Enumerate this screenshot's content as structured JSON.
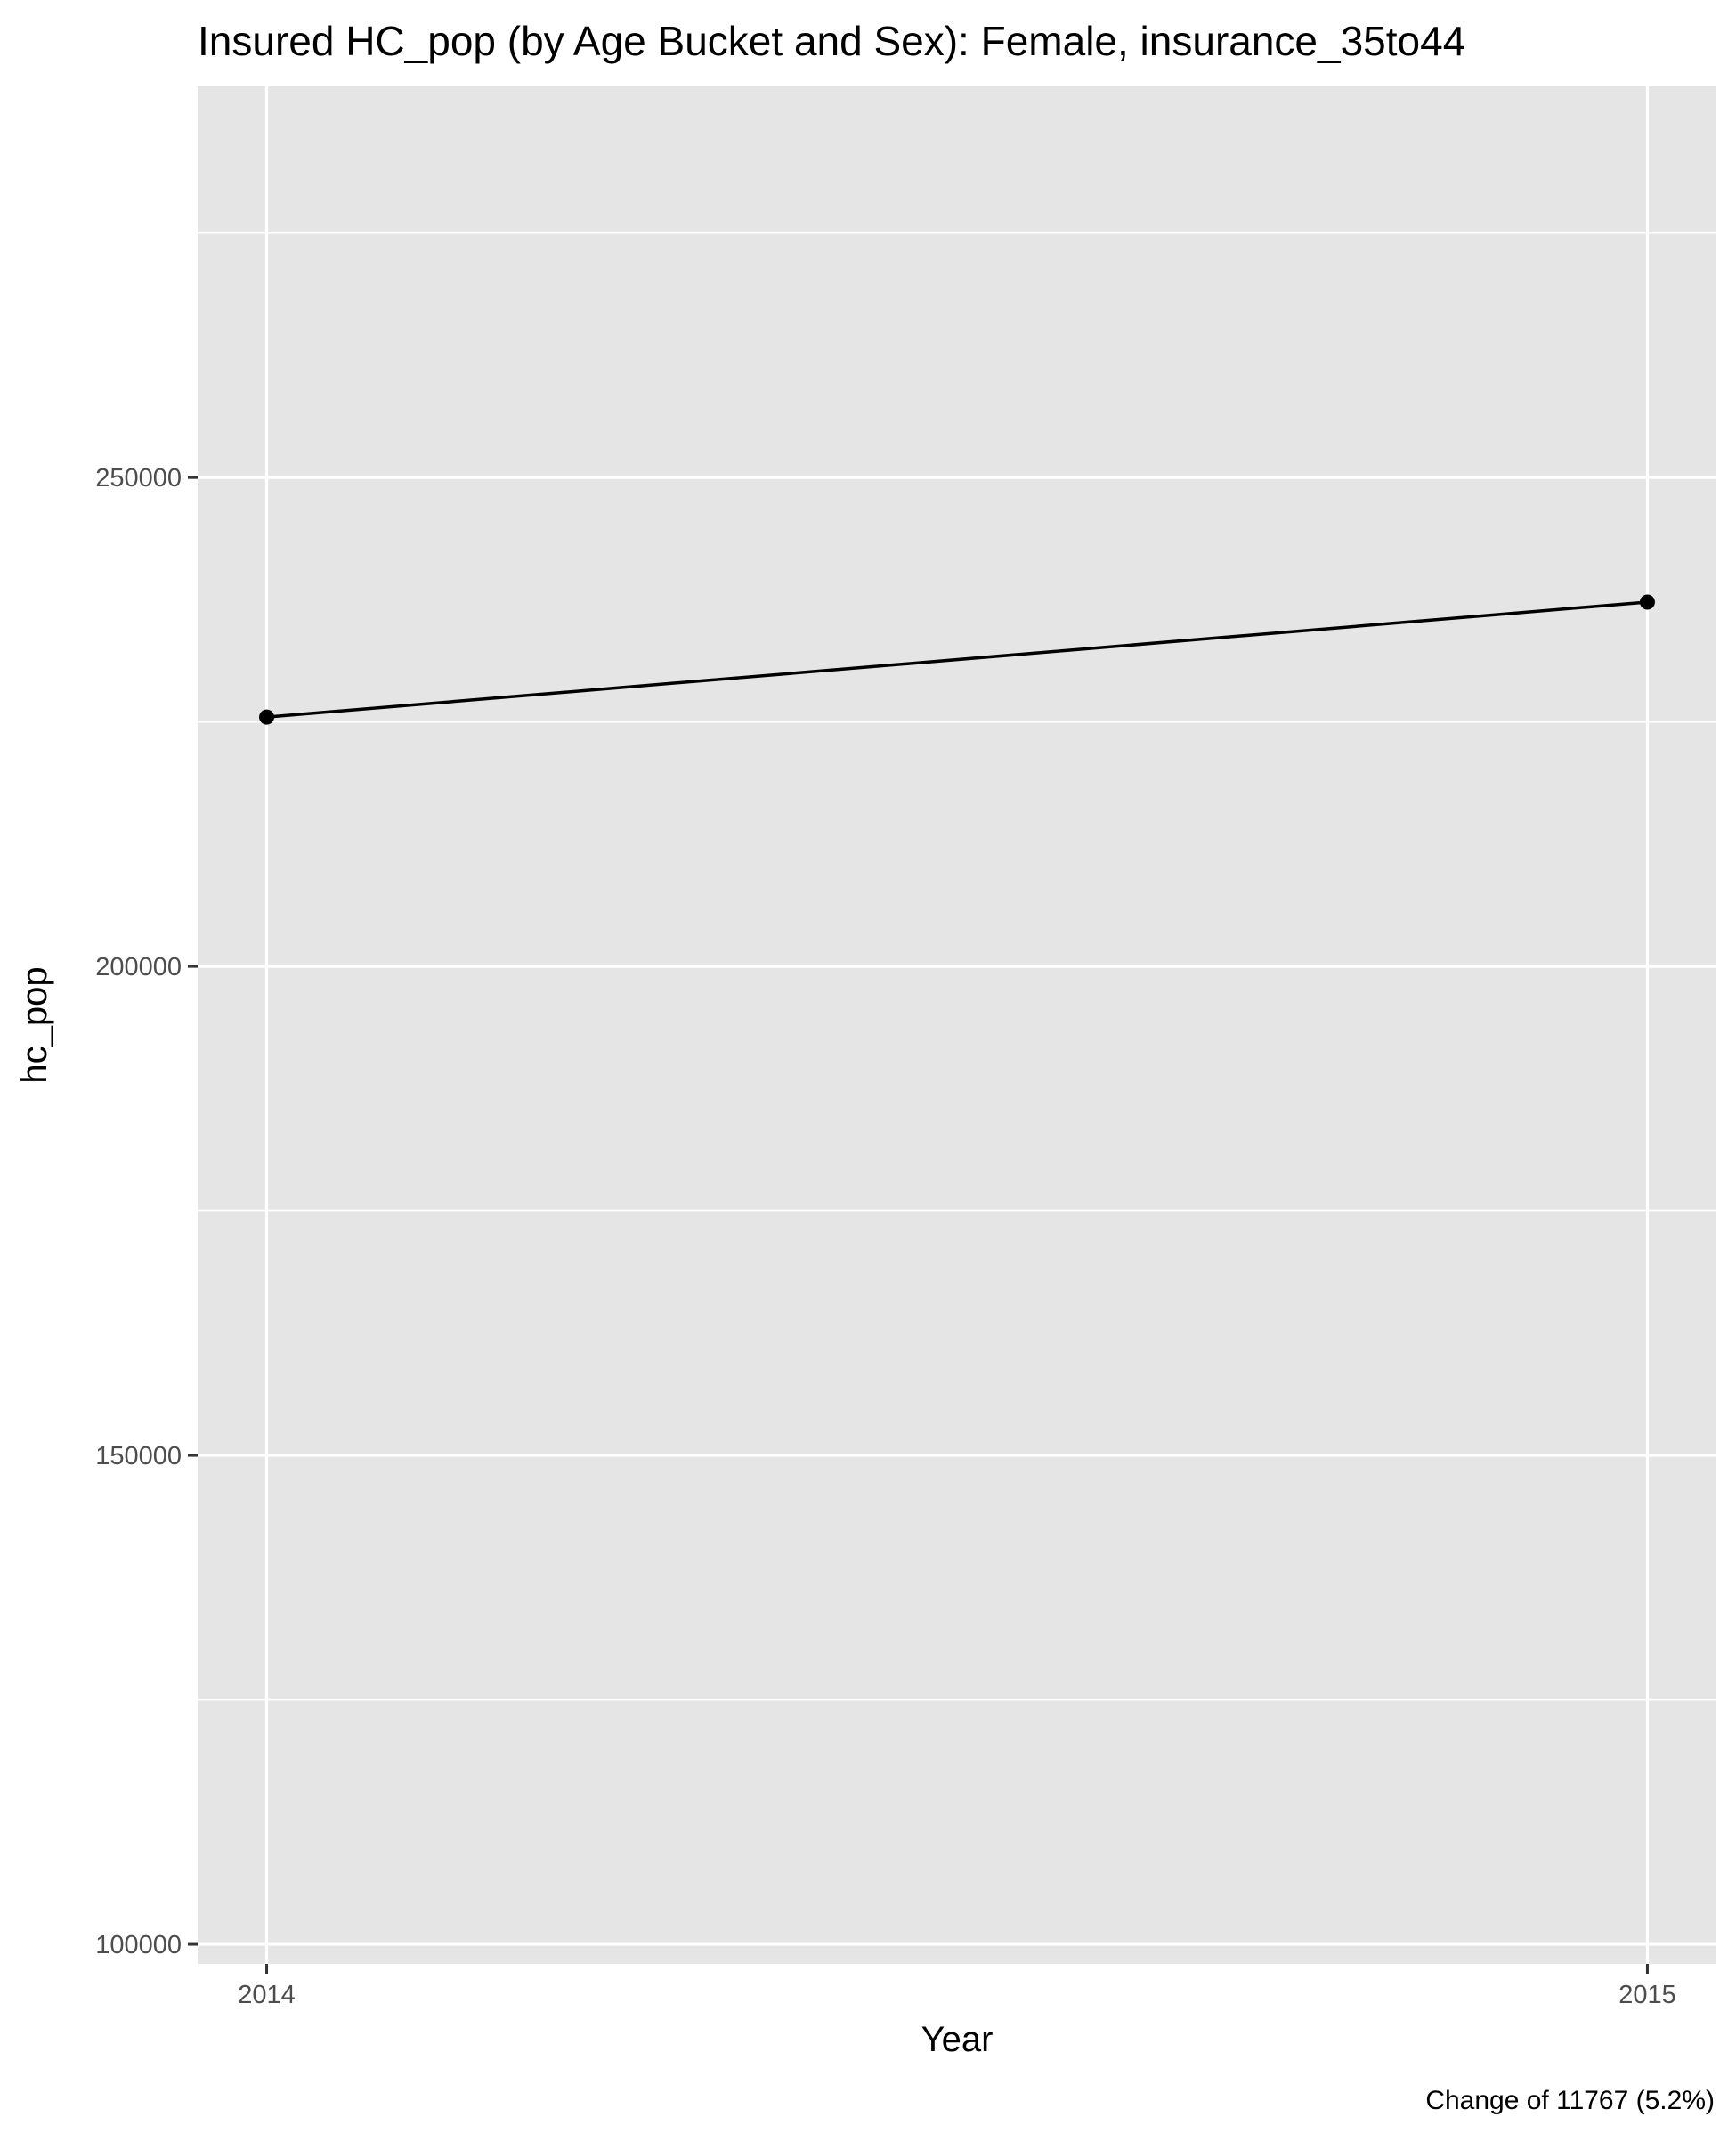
{
  "chart_data": {
    "type": "line",
    "title": "Insured HC_pop (by Age Bucket and Sex): Female, insurance_35to44",
    "xlabel": "Year",
    "ylabel": "hc_pop",
    "caption": "Change of 11767 (5.2%)",
    "x": [
      "2014",
      "2015"
    ],
    "series": [
      {
        "values": [
          225500,
          237267
        ],
        "color": "#000000"
      }
    ],
    "xlim": [
      2013.95,
      2015.05
    ],
    "ylim": [
      98000,
      290000
    ],
    "y_ticks": [
      100000,
      150000,
      200000,
      250000
    ],
    "y_tick_labels": [
      "100000",
      "150000",
      "200000",
      "250000"
    ],
    "x_tick_labels": [
      "2014",
      "2015"
    ],
    "grid": true,
    "legend": "none",
    "colors": {
      "panel_background": "#e5e5e5",
      "grid_line": "#ffffff",
      "tick_text": "#4d4d4d",
      "line": "#000000"
    }
  }
}
